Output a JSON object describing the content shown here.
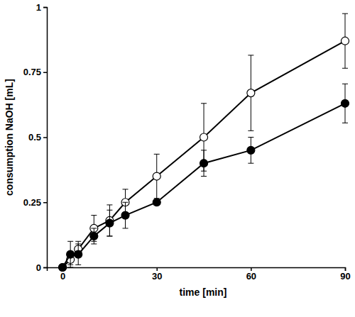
{
  "chart_data": {
    "type": "line",
    "x_label": "time [min]",
    "y_label": "consumption NaOH [mL]",
    "x": [
      0,
      2.5,
      5,
      10,
      15,
      20,
      30,
      45,
      60,
      90
    ],
    "series": [
      {
        "color": "#000000",
        "marker": "circle-open",
        "line_style": "solid",
        "values": [
          0,
          0.03,
          0.07,
          0.15,
          0.18,
          0.25,
          0.35,
          0.5,
          0.67,
          0.87
        ],
        "errors": [
          0,
          0.02,
          0.03,
          0.05,
          0.06,
          0.05,
          0.085,
          0.13,
          0.145,
          0.105
        ]
      },
      {
        "color": "#000000",
        "marker": "circle",
        "line_style": "solid",
        "values": [
          0,
          0.05,
          0.05,
          0.12,
          0.17,
          0.2,
          0.25,
          0.4,
          0.45,
          0.63
        ],
        "errors": [
          0,
          0.05,
          0.04,
          0.03,
          0.05,
          0.05,
          0.0,
          0.05,
          0.05,
          0.075
        ]
      }
    ],
    "xlim": [
      -5,
      90
    ],
    "xticks": [
      0,
      30,
      60,
      90
    ],
    "ylim": [
      0,
      1
    ],
    "yticks": [
      0,
      0.25,
      0.5,
      0.75,
      1
    ],
    "grid": false
  }
}
